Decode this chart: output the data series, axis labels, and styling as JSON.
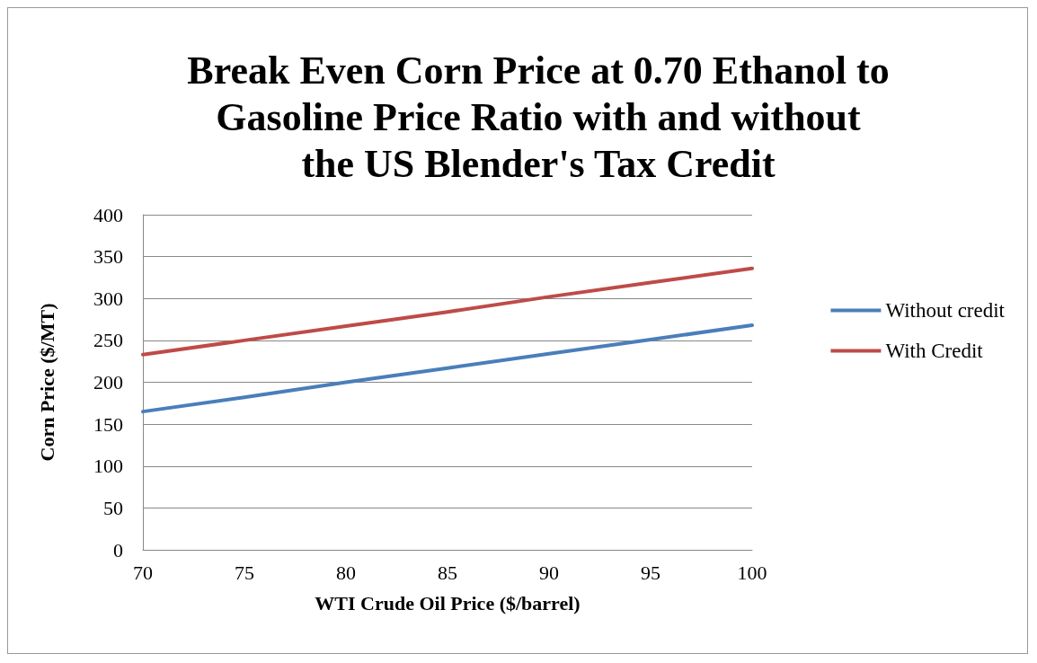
{
  "chart_data": {
    "type": "line",
    "title": "Break Even Corn Price at 0.70 Ethanol to\nGasoline Price Ratio with and without\nthe US Blender's Tax Credit",
    "xlabel": "WTI Crude Oil Price ($/barrel)",
    "ylabel": "Corn Price ($/MT)",
    "x": [
      70,
      75,
      80,
      85,
      90,
      95,
      100
    ],
    "series": [
      {
        "name": "Without credit",
        "color": "#4a7ebb",
        "values": [
          165,
          182,
          200,
          217,
          234,
          251,
          268
        ]
      },
      {
        "name": "With Credit",
        "color": "#be4b48",
        "values": [
          233,
          250,
          267,
          284,
          302,
          319,
          336
        ]
      }
    ],
    "xlim": [
      70,
      100
    ],
    "xticks": [
      70,
      75,
      80,
      85,
      90,
      95,
      100
    ],
    "ylim": [
      0,
      400
    ],
    "yticks": [
      0,
      50,
      100,
      150,
      200,
      250,
      300,
      350,
      400
    ],
    "grid": "y",
    "legend": "right",
    "marker": "none",
    "line_style": "solid"
  }
}
